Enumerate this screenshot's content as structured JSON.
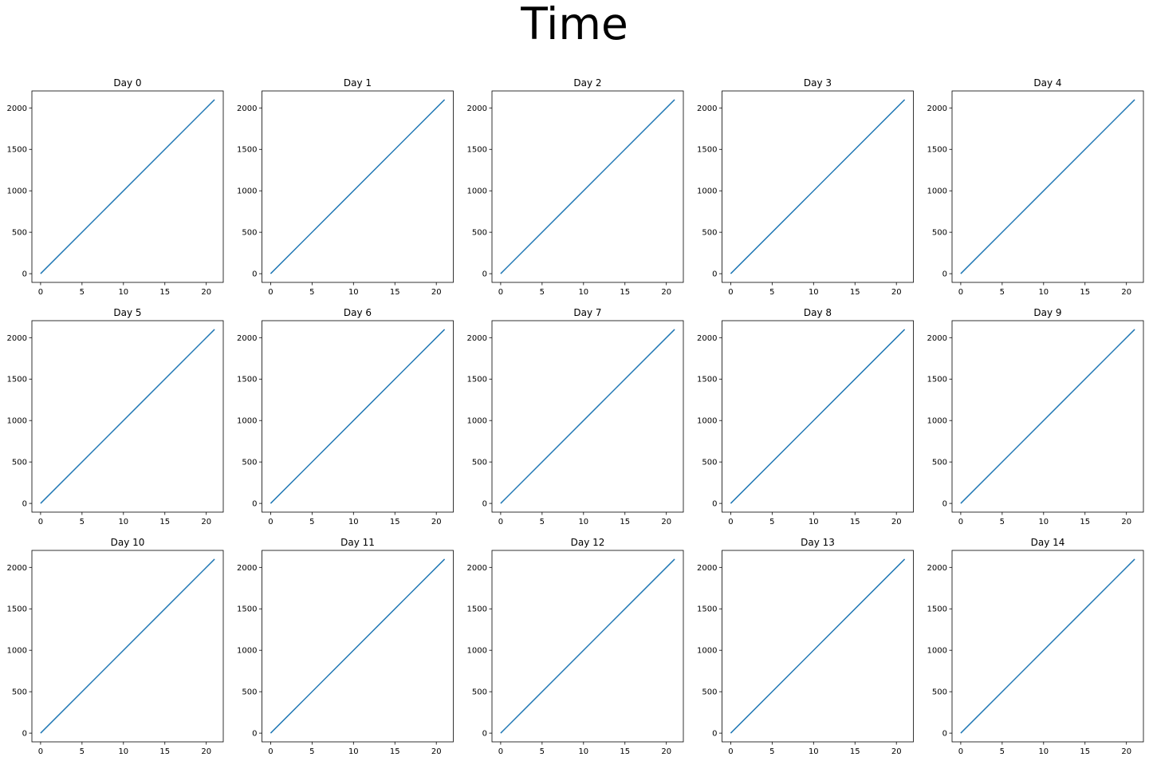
{
  "figure": {
    "suptitle": "Time"
  },
  "style": {
    "line_color": "#1f77b4",
    "axes_color": "#000000",
    "background": "#ffffff"
  },
  "chart_data": [
    {
      "type": "line",
      "title": "Day 0",
      "x": [
        0,
        21
      ],
      "y": [
        0,
        2100
      ],
      "xlim": [
        -1.05,
        22.05
      ],
      "ylim": [
        -105,
        2205
      ],
      "xticks": [
        0,
        5,
        10,
        15,
        20
      ],
      "yticks": [
        0,
        500,
        1000,
        1500,
        2000
      ],
      "grid": false
    },
    {
      "type": "line",
      "title": "Day 1",
      "x": [
        0,
        21
      ],
      "y": [
        0,
        2100
      ],
      "xlim": [
        -1.05,
        22.05
      ],
      "ylim": [
        -105,
        2205
      ],
      "xticks": [
        0,
        5,
        10,
        15,
        20
      ],
      "yticks": [
        0,
        500,
        1000,
        1500,
        2000
      ],
      "grid": false
    },
    {
      "type": "line",
      "title": "Day 2",
      "x": [
        0,
        21
      ],
      "y": [
        0,
        2100
      ],
      "xlim": [
        -1.05,
        22.05
      ],
      "ylim": [
        -105,
        2205
      ],
      "xticks": [
        0,
        5,
        10,
        15,
        20
      ],
      "yticks": [
        0,
        500,
        1000,
        1500,
        2000
      ],
      "grid": false
    },
    {
      "type": "line",
      "title": "Day 3",
      "x": [
        0,
        21
      ],
      "y": [
        0,
        2100
      ],
      "xlim": [
        -1.05,
        22.05
      ],
      "ylim": [
        -105,
        2205
      ],
      "xticks": [
        0,
        5,
        10,
        15,
        20
      ],
      "yticks": [
        0,
        500,
        1000,
        1500,
        2000
      ],
      "grid": false
    },
    {
      "type": "line",
      "title": "Day 4",
      "x": [
        0,
        21
      ],
      "y": [
        0,
        2100
      ],
      "xlim": [
        -1.05,
        22.05
      ],
      "ylim": [
        -105,
        2205
      ],
      "xticks": [
        0,
        5,
        10,
        15,
        20
      ],
      "yticks": [
        0,
        500,
        1000,
        1500,
        2000
      ],
      "grid": false
    },
    {
      "type": "line",
      "title": "Day 5",
      "x": [
        0,
        21
      ],
      "y": [
        0,
        2100
      ],
      "xlim": [
        -1.05,
        22.05
      ],
      "ylim": [
        -105,
        2205
      ],
      "xticks": [
        0,
        5,
        10,
        15,
        20
      ],
      "yticks": [
        0,
        500,
        1000,
        1500,
        2000
      ],
      "grid": false
    },
    {
      "type": "line",
      "title": "Day 6",
      "x": [
        0,
        21
      ],
      "y": [
        0,
        2100
      ],
      "xlim": [
        -1.05,
        22.05
      ],
      "ylim": [
        -105,
        2205
      ],
      "xticks": [
        0,
        5,
        10,
        15,
        20
      ],
      "yticks": [
        0,
        500,
        1000,
        1500,
        2000
      ],
      "grid": false
    },
    {
      "type": "line",
      "title": "Day 7",
      "x": [
        0,
        21
      ],
      "y": [
        0,
        2100
      ],
      "xlim": [
        -1.05,
        22.05
      ],
      "ylim": [
        -105,
        2205
      ],
      "xticks": [
        0,
        5,
        10,
        15,
        20
      ],
      "yticks": [
        0,
        500,
        1000,
        1500,
        2000
      ],
      "grid": false
    },
    {
      "type": "line",
      "title": "Day 8",
      "x": [
        0,
        21
      ],
      "y": [
        0,
        2100
      ],
      "xlim": [
        -1.05,
        22.05
      ],
      "ylim": [
        -105,
        2205
      ],
      "xticks": [
        0,
        5,
        10,
        15,
        20
      ],
      "yticks": [
        0,
        500,
        1000,
        1500,
        2000
      ],
      "grid": false
    },
    {
      "type": "line",
      "title": "Day 9",
      "x": [
        0,
        21
      ],
      "y": [
        0,
        2100
      ],
      "xlim": [
        -1.05,
        22.05
      ],
      "ylim": [
        -105,
        2205
      ],
      "xticks": [
        0,
        5,
        10,
        15,
        20
      ],
      "yticks": [
        0,
        500,
        1000,
        1500,
        2000
      ],
      "grid": false
    },
    {
      "type": "line",
      "title": "Day 10",
      "x": [
        0,
        21
      ],
      "y": [
        0,
        2100
      ],
      "xlim": [
        -1.05,
        22.05
      ],
      "ylim": [
        -105,
        2205
      ],
      "xticks": [
        0,
        5,
        10,
        15,
        20
      ],
      "yticks": [
        0,
        500,
        1000,
        1500,
        2000
      ],
      "grid": false
    },
    {
      "type": "line",
      "title": "Day 11",
      "x": [
        0,
        21
      ],
      "y": [
        0,
        2100
      ],
      "xlim": [
        -1.05,
        22.05
      ],
      "ylim": [
        -105,
        2205
      ],
      "xticks": [
        0,
        5,
        10,
        15,
        20
      ],
      "yticks": [
        0,
        500,
        1000,
        1500,
        2000
      ],
      "grid": false
    },
    {
      "type": "line",
      "title": "Day 12",
      "x": [
        0,
        21
      ],
      "y": [
        0,
        2100
      ],
      "xlim": [
        -1.05,
        22.05
      ],
      "ylim": [
        -105,
        2205
      ],
      "xticks": [
        0,
        5,
        10,
        15,
        20
      ],
      "yticks": [
        0,
        500,
        1000,
        1500,
        2000
      ],
      "grid": false
    },
    {
      "type": "line",
      "title": "Day 13",
      "x": [
        0,
        21
      ],
      "y": [
        0,
        2100
      ],
      "xlim": [
        -1.05,
        22.05
      ],
      "ylim": [
        -105,
        2205
      ],
      "xticks": [
        0,
        5,
        10,
        15,
        20
      ],
      "yticks": [
        0,
        500,
        1000,
        1500,
        2000
      ],
      "grid": false
    },
    {
      "type": "line",
      "title": "Day 14",
      "x": [
        0,
        21
      ],
      "y": [
        0,
        2100
      ],
      "xlim": [
        -1.05,
        22.05
      ],
      "ylim": [
        -105,
        2205
      ],
      "xticks": [
        0,
        5,
        10,
        15,
        20
      ],
      "yticks": [
        0,
        500,
        1000,
        1500,
        2000
      ],
      "grid": false
    }
  ]
}
